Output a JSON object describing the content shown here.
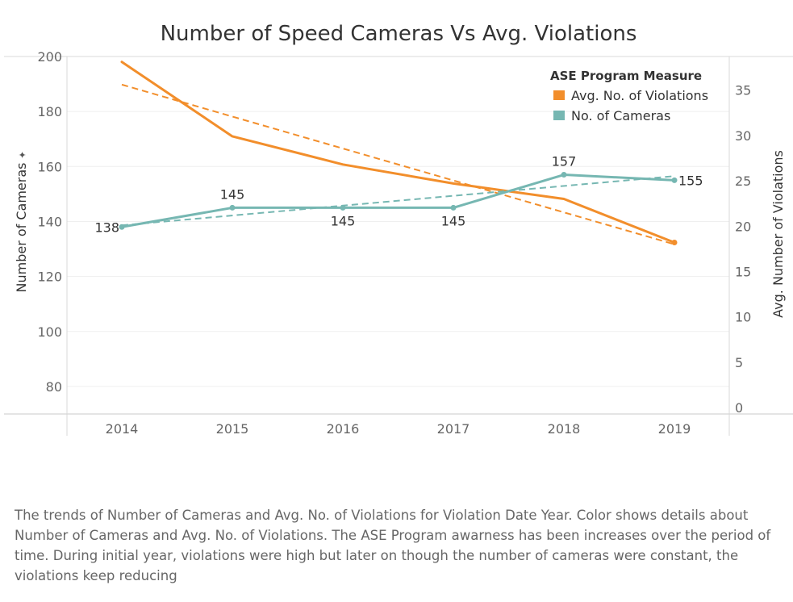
{
  "chart_data": {
    "type": "line",
    "title": "Number of Speed Cameras Vs Avg. Violations",
    "categories": [
      "2014",
      "2015",
      "2016",
      "2017",
      "2018",
      "2019"
    ],
    "y_left": {
      "label": "Number of Cameras",
      "range": [
        70,
        200
      ],
      "ticks": [
        80,
        100,
        120,
        140,
        160,
        180,
        200
      ]
    },
    "y_right": {
      "label": "Avg. Number of Violations",
      "range": [
        -0.7,
        38.7
      ],
      "ticks": [
        0,
        5,
        10,
        15,
        20,
        25,
        30,
        35
      ]
    },
    "legend": {
      "title": "ASE Program Measure",
      "placement": "top-right",
      "entries": [
        "Avg. No. of Violations",
        "No. of Cameras"
      ]
    },
    "series": [
      {
        "name": "Avg. No. of Violations",
        "axis": "right",
        "color": "#f28e2b",
        "values": [
          38.1,
          29.9,
          26.8,
          24.7,
          23.0,
          18.2
        ],
        "trend": [
          35.6,
          18.0
        ],
        "point_marker": [
          false,
          false,
          false,
          false,
          false,
          true
        ],
        "data_labels": [
          null,
          null,
          null,
          null,
          null,
          null
        ]
      },
      {
        "name": "No. of Cameras",
        "axis": "left",
        "color": "#76b7b2",
        "values": [
          138,
          145,
          145,
          145,
          157,
          155
        ],
        "trend": [
          138.6,
          156.5
        ],
        "point_marker": [
          true,
          true,
          true,
          true,
          true,
          true
        ],
        "data_labels": [
          "138",
          "145",
          "145",
          "145",
          "157",
          "155"
        ]
      }
    ]
  },
  "caption": "The trends of Number of Cameras and Avg. No. of Violations for Violation Date Year.  Color shows details about Number of Cameras and Avg. No. of Violations. The ASE Program awarness has been increases over the period of time. During initial year, violations were high but later on though the number of cameras were constant, the violations keep reducing"
}
